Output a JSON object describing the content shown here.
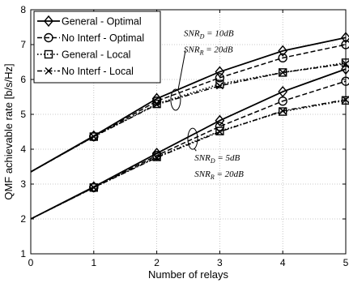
{
  "chart_data": {
    "type": "line",
    "xlabel": "Number of relays",
    "ylabel": "QMF achievable rate [b/s/Hz]",
    "xlim": [
      0,
      5
    ],
    "ylim": [
      1,
      8
    ],
    "xticks": [
      "0",
      "1",
      "2",
      "3",
      "4",
      "5"
    ],
    "yticks": [
      "1",
      "2",
      "3",
      "4",
      "5",
      "6",
      "7",
      "8"
    ],
    "grid": true,
    "legend_position": "top-left",
    "series": [
      {
        "name": "General - Optimal",
        "group": "high",
        "style": "solid",
        "marker": "diamond",
        "x": [
          0,
          1,
          2,
          3,
          4,
          5
        ],
        "values": [
          3.35,
          4.38,
          5.45,
          6.22,
          6.82,
          7.2
        ]
      },
      {
        "name": "No Interf - Optimal",
        "group": "high",
        "style": "dashed",
        "marker": "circle",
        "x": [
          0,
          1,
          2,
          3,
          4,
          5
        ],
        "values": [
          3.35,
          4.36,
          5.38,
          6.05,
          6.62,
          7.0
        ]
      },
      {
        "name": "General - Local",
        "group": "high",
        "style": "dotted",
        "marker": "square",
        "x": [
          0,
          1,
          2,
          3,
          4,
          5
        ],
        "values": [
          3.35,
          4.36,
          5.3,
          5.87,
          6.2,
          6.48
        ]
      },
      {
        "name": "No Interf - Local",
        "group": "high",
        "style": "dashdot",
        "marker": "x",
        "x": [
          0,
          1,
          2,
          3,
          4,
          5
        ],
        "values": [
          3.35,
          4.36,
          5.28,
          5.82,
          6.2,
          6.45
        ]
      },
      {
        "name": "General - Optimal",
        "group": "low",
        "style": "solid",
        "marker": "diamond",
        "x": [
          0,
          1,
          2,
          3,
          4,
          5
        ],
        "values": [
          2.0,
          2.92,
          3.88,
          4.82,
          5.65,
          6.3
        ]
      },
      {
        "name": "No Interf - Optimal",
        "group": "low",
        "style": "dashed",
        "marker": "circle",
        "x": [
          0,
          1,
          2,
          3,
          4,
          5
        ],
        "values": [
          2.0,
          2.9,
          3.82,
          4.65,
          5.38,
          5.95
        ]
      },
      {
        "name": "General - Local",
        "group": "low",
        "style": "dotted",
        "marker": "square",
        "x": [
          0,
          1,
          2,
          3,
          4,
          5
        ],
        "values": [
          2.0,
          2.9,
          3.78,
          4.52,
          5.08,
          5.4
        ]
      },
      {
        "name": "No Interf - Local",
        "group": "low",
        "style": "dashdot",
        "marker": "x",
        "x": [
          0,
          1,
          2,
          3,
          4,
          5
        ],
        "values": [
          2.0,
          2.9,
          3.76,
          4.5,
          5.1,
          5.42
        ]
      }
    ],
    "legend": [
      "General - Optimal",
      "No Interf - Optimal",
      "General - Local",
      "No Interf - Local"
    ],
    "annotations": [
      {
        "id": "high",
        "lines": [
          {
            "base": "SNR",
            "sub": "D",
            "rest": " = 10dB"
          },
          {
            "base": "SNR",
            "sub": "R",
            "rest": " = 20dB"
          }
        ],
        "ellipse_at": [
          2.3,
          5.42
        ],
        "text_at": [
          2.43,
          7.25
        ]
      },
      {
        "id": "low",
        "lines": [
          {
            "base": "SNR",
            "sub": "D",
            "rest": " = 5dB"
          },
          {
            "base": "SNR",
            "sub": "R",
            "rest": " = 20dB"
          }
        ],
        "ellipse_at": [
          2.57,
          4.3
        ],
        "text_at": [
          2.6,
          3.67
        ]
      }
    ]
  }
}
